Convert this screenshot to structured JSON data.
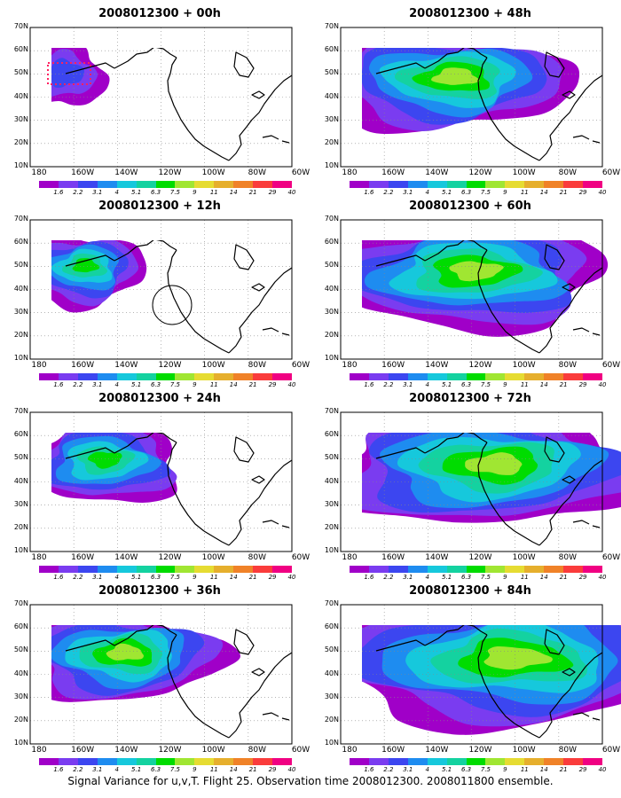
{
  "figure": {
    "caption": "Signal Variance for u,v,T. Flight 25. Observation time 2008012300. 2008011800 ensemble."
  },
  "axes": {
    "y_ticks": [
      "70N",
      "60N",
      "50N",
      "40N",
      "30N",
      "20N",
      "10N"
    ],
    "x_ticks": [
      "180",
      "160W",
      "140W",
      "120W",
      "100W",
      "80W",
      "60W"
    ]
  },
  "colorbar": {
    "labels": [
      "1.6",
      "2.2",
      "3.1",
      "4",
      "5.1",
      "6.3",
      "7.5",
      "9",
      "11",
      "14",
      "21",
      "29",
      "40"
    ],
    "colors": [
      "#ffffff",
      "#a000c8",
      "#7a3cf0",
      "#3c46f0",
      "#1e8cf0",
      "#16c8dc",
      "#14d2a0",
      "#00dc00",
      "#a0e632",
      "#e6dc32",
      "#e6af2d",
      "#f08228",
      "#fa3c3c",
      "#f00082"
    ]
  },
  "panels": [
    {
      "title": "2008012300 + 00h",
      "lead_hours": 0
    },
    {
      "title": "2008012300 + 48h",
      "lead_hours": 48
    },
    {
      "title": "2008012300 + 12h",
      "lead_hours": 12
    },
    {
      "title": "2008012300 + 60h",
      "lead_hours": 60
    },
    {
      "title": "2008012300 + 24h",
      "lead_hours": 24
    },
    {
      "title": "2008012300 + 72h",
      "lead_hours": 72
    },
    {
      "title": "2008012300 + 36h",
      "lead_hours": 36
    },
    {
      "title": "2008012300 + 84h",
      "lead_hours": 84
    }
  ]
}
